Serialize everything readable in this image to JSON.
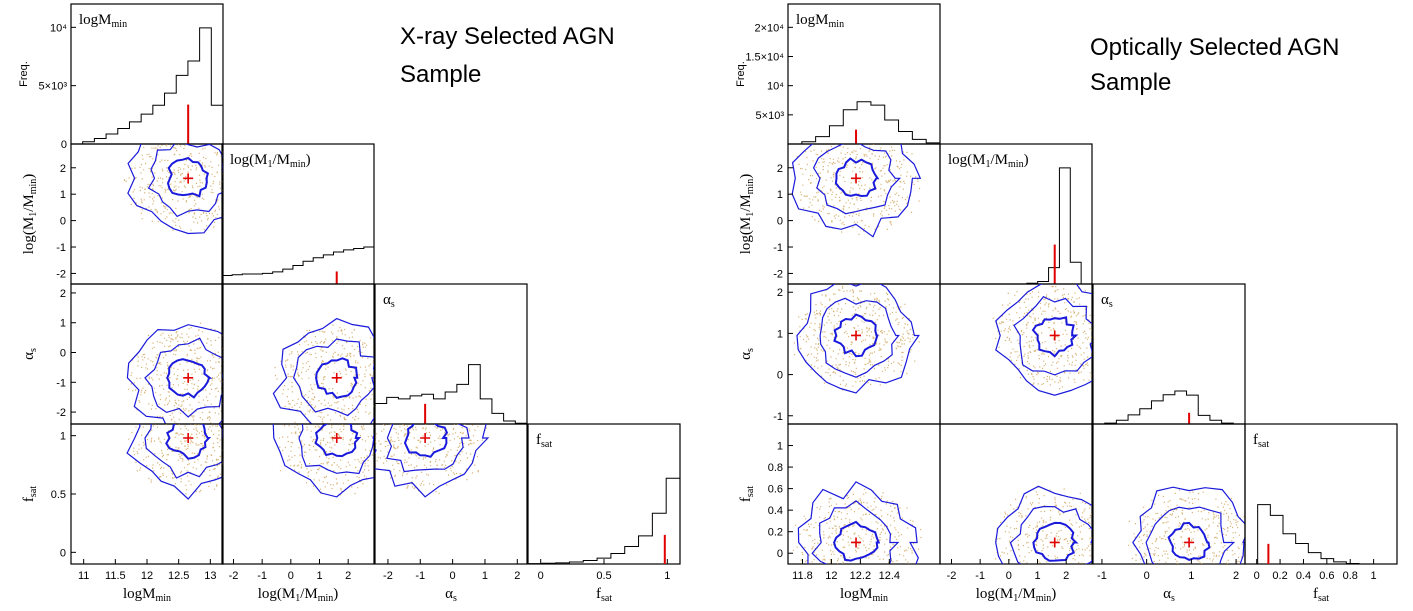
{
  "chart_data": [
    {
      "type": "scatter",
      "title": [
        "X-ray Selected AGN",
        "Sample"
      ],
      "params": [
        {
          "name": "logM",
          "sub": "min",
          "range": [
            10.8,
            13.2
          ],
          "ticks": [
            11,
            11.5,
            12,
            12.5,
            13
          ],
          "tick_labels": [
            "11",
            "11.5",
            "12",
            "12.5",
            "13"
          ],
          "best": 12.65
        },
        {
          "name": "log(M",
          "sub": "1",
          "suffix": "/M",
          "sub2": "min",
          "suffix2": ")",
          "range": [
            -2.4,
            2.9
          ],
          "ticks": [
            -2,
            -1,
            0,
            1,
            2
          ],
          "tick_labels": [
            "-2",
            "-1",
            "0",
            "1",
            "2"
          ],
          "best": 1.6
        },
        {
          "name": "α",
          "sub": "s",
          "range": [
            -2.4,
            2.3
          ],
          "ticks": [
            -2,
            -1,
            0,
            1,
            2
          ],
          "tick_labels": [
            "-2",
            "-1",
            "0",
            "1",
            "2"
          ],
          "best": -0.85
        },
        {
          "name": "f",
          "sub": "sat",
          "range": [
            -0.1,
            1.1
          ],
          "ticks": [
            0,
            0.5,
            1
          ],
          "tick_labels": [
            "0",
            "0.5",
            "1"
          ],
          "best": 0.98
        }
      ],
      "freq_label": "Freq.",
      "freq_ticks": [
        0,
        5000,
        10000
      ],
      "freq_tick_labels": [
        "0",
        "5×10³",
        "10⁴"
      ],
      "freq_max": 12000,
      "histograms": [
        [
          0,
          200,
          500,
          900,
          1400,
          2000,
          2700,
          3500,
          4600,
          6200,
          7500,
          10500,
          3500
        ],
        [
          1200,
          1300,
          1400,
          1400,
          1500,
          1700,
          2100,
          2600,
          3200,
          3700,
          4100,
          4500,
          4800,
          5000,
          5200
        ],
        [
          2700,
          3500,
          3300,
          3700,
          3900,
          3300,
          4200,
          5200,
          7800,
          3300,
          1400,
          400,
          100
        ],
        [
          100,
          200,
          300,
          500,
          900,
          1500,
          2700,
          4500,
          7200,
          13000,
          22000
        ]
      ],
      "relative_hist_heights": [
        0.88,
        0.28,
        0.45,
        0.65
      ]
    },
    {
      "type": "scatter",
      "title": [
        "Optically Selected AGN",
        "Sample"
      ],
      "params": [
        {
          "name": "logM",
          "sub": "min",
          "range": [
            11.7,
            12.75
          ],
          "ticks": [
            11.8,
            12,
            12.2,
            12.4
          ],
          "tick_labels": [
            "11.8",
            "12",
            "12.2",
            "12.4"
          ],
          "best": 12.17
        },
        {
          "name": "log(M",
          "sub": "1",
          "suffix": "/M",
          "sub2": "min",
          "suffix2": ")",
          "range": [
            -2.4,
            2.9
          ],
          "ticks": [
            -2,
            -1,
            0,
            1,
            2
          ],
          "tick_labels": [
            "-2",
            "-1",
            "0",
            "1",
            "2"
          ],
          "best": 1.6
        },
        {
          "name": "α",
          "sub": "s",
          "range": [
            -1.2,
            2.2
          ],
          "ticks": [
            -1,
            0,
            1,
            2
          ],
          "tick_labels": [
            "-1",
            "0",
            "1",
            "2"
          ],
          "best": 0.95
        },
        {
          "name": "f",
          "sub": "sat",
          "range": [
            -0.1,
            1.2
          ],
          "ticks": [
            0,
            0.2,
            0.4,
            0.6,
            0.8,
            1
          ],
          "tick_labels": [
            "0",
            "0.2",
            "0.4",
            "0.6",
            "0.8",
            "1"
          ],
          "best": 0.1
        }
      ],
      "freq_label": "Freq.",
      "freq_ticks": [
        5000,
        10000,
        15000,
        20000
      ],
      "freq_tick_labels": [
        "5×10³",
        "10⁴",
        "1.5×10⁴",
        "2×10⁴"
      ],
      "freq_max": 24000,
      "histograms": [
        [
          0,
          400,
          1300,
          3200,
          6000,
          7400,
          6800,
          4200,
          2200,
          800,
          200
        ],
        [
          0,
          0,
          0,
          0,
          0,
          0,
          0,
          0,
          200,
          700,
          4500,
          32000,
          6000,
          0
        ],
        [
          0,
          200,
          900,
          2200,
          3700,
          5600,
          7100,
          8000,
          7000,
          2100,
          900,
          200,
          0
        ],
        [
          0,
          11000,
          9000,
          5600,
          3800,
          2100,
          1000,
          400,
          100,
          0,
          0,
          0
        ]
      ],
      "relative_hist_heights": [
        0.32,
        0.88,
        0.25,
        0.45
      ]
    }
  ]
}
